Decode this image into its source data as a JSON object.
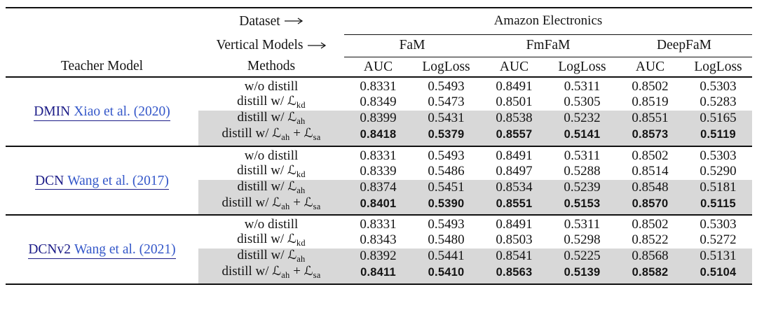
{
  "header": {
    "dataset_label": "Dataset",
    "vertical_models_label": "Vertical Models",
    "dataset_group": "Amazon Electronics",
    "teacher_col": "Teacher Model",
    "methods_col": "Methods",
    "model_groups": [
      "FaM",
      "FmFaM",
      "DeepFaM"
    ],
    "metrics": [
      "AUC",
      "LogLoss"
    ]
  },
  "icons": {
    "dataset_arrow": "long-right-arrow",
    "vertical_models_arrow": "long-right-arrow"
  },
  "math": {
    "script_L": "ℒ"
  },
  "colors": {
    "highlight": "#d8d8d8",
    "model_link": "#1b1b87",
    "citation_link": "#3457c9",
    "rule": "#101010"
  },
  "blocks": [
    {
      "teacher": "DMIN",
      "citation": "Xiao et al. (2020)",
      "rows": [
        {
          "method": [
            "w/o distill"
          ],
          "shaded": false,
          "bold": false,
          "values": [
            "0.8331",
            "0.5493",
            "0.8491",
            "0.5311",
            "0.8502",
            "0.5303"
          ]
        },
        {
          "method": [
            "distill w/ ",
            {
              "loss": "kd"
            }
          ],
          "shaded": false,
          "bold": false,
          "values": [
            "0.8349",
            "0.5473",
            "0.8501",
            "0.5305",
            "0.8519",
            "0.5283"
          ]
        },
        {
          "method": [
            "distill w/ ",
            {
              "loss": "ah"
            }
          ],
          "shaded": true,
          "bold": false,
          "values": [
            "0.8399",
            "0.5431",
            "0.8538",
            "0.5232",
            "0.8551",
            "0.5165"
          ]
        },
        {
          "method": [
            "distill w/ ",
            {
              "loss": "ah"
            },
            " + ",
            {
              "loss": "sa"
            }
          ],
          "shaded": true,
          "bold": true,
          "values": [
            "0.8418",
            "0.5379",
            "0.8557",
            "0.5141",
            "0.8573",
            "0.5119"
          ]
        }
      ]
    },
    {
      "teacher": "DCN",
      "citation": "Wang et al. (2017)",
      "rows": [
        {
          "method": [
            "w/o distill"
          ],
          "shaded": false,
          "bold": false,
          "values": [
            "0.8331",
            "0.5493",
            "0.8491",
            "0.5311",
            "0.8502",
            "0.5303"
          ]
        },
        {
          "method": [
            "distill w/ ",
            {
              "loss": "kd"
            }
          ],
          "shaded": false,
          "bold": false,
          "values": [
            "0.8339",
            "0.5486",
            "0.8497",
            "0.5288",
            "0.8514",
            "0.5290"
          ]
        },
        {
          "method": [
            "distill w/ ",
            {
              "loss": "ah"
            }
          ],
          "shaded": true,
          "bold": false,
          "values": [
            "0.8374",
            "0.5451",
            "0.8534",
            "0.5239",
            "0.8548",
            "0.5181"
          ]
        },
        {
          "method": [
            "distill w/ ",
            {
              "loss": "ah"
            },
            " + ",
            {
              "loss": "sa"
            }
          ],
          "shaded": true,
          "bold": true,
          "values": [
            "0.8401",
            "0.5390",
            "0.8551",
            "0.5153",
            "0.8570",
            "0.5115"
          ]
        }
      ]
    },
    {
      "teacher": "DCNv2",
      "citation": "Wang et al. (2021)",
      "rows": [
        {
          "method": [
            "w/o distill"
          ],
          "shaded": false,
          "bold": false,
          "values": [
            "0.8331",
            "0.5493",
            "0.8491",
            "0.5311",
            "0.8502",
            "0.5303"
          ]
        },
        {
          "method": [
            "distill w/ ",
            {
              "loss": "kd"
            }
          ],
          "shaded": false,
          "bold": false,
          "values": [
            "0.8343",
            "0.5480",
            "0.8503",
            "0.5298",
            "0.8522",
            "0.5272"
          ]
        },
        {
          "method": [
            "distill w/ ",
            {
              "loss": "ah"
            }
          ],
          "shaded": true,
          "bold": false,
          "values": [
            "0.8392",
            "0.5441",
            "0.8541",
            "0.5225",
            "0.8568",
            "0.5131"
          ]
        },
        {
          "method": [
            "distill w/ ",
            {
              "loss": "ah"
            },
            " + ",
            {
              "loss": "sa"
            }
          ],
          "shaded": true,
          "bold": true,
          "values": [
            "0.8411",
            "0.5410",
            "0.8563",
            "0.5139",
            "0.8582",
            "0.5104"
          ]
        }
      ]
    }
  ]
}
